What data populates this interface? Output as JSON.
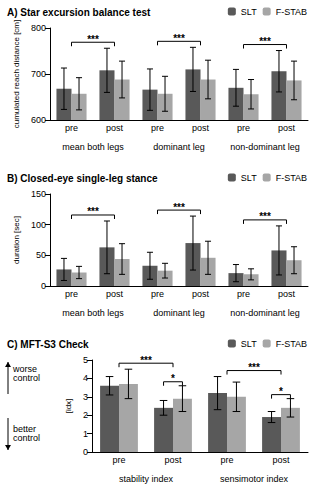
{
  "chart_data": [
    {
      "type": "bar",
      "title": "A) Star excursion balance test",
      "y_label": "cumulated reach distance [cm]",
      "categories": [
        "pre",
        "post",
        "pre",
        "post",
        "pre",
        "post"
      ],
      "groups": [
        "mean both legs",
        "dominant leg",
        "non-dominant leg"
      ],
      "series": [
        {
          "name": "SLT",
          "color": "#595959",
          "values": [
            668,
            708,
            666,
            710,
            670,
            706
          ],
          "errors": [
            45,
            48,
            45,
            48,
            40,
            45
          ]
        },
        {
          "name": "F-STAB",
          "color": "#a6a6a6",
          "values": [
            657,
            688,
            657,
            688,
            656,
            686
          ],
          "errors": [
            35,
            40,
            38,
            42,
            32,
            42
          ]
        }
      ],
      "ylim": [
        600,
        800
      ],
      "yticks": [
        600,
        700,
        800
      ],
      "grid": false,
      "legend": "upper right",
      "significance": [
        {
          "text": "***",
          "categories": [
            0,
            1
          ]
        },
        {
          "text": "***",
          "categories": [
            2,
            3
          ]
        },
        {
          "text": "***",
          "categories": [
            4,
            5
          ]
        }
      ]
    },
    {
      "type": "bar",
      "title": "B) Closed-eye single-leg stance",
      "y_label": "duration [sec]",
      "categories": [
        "pre",
        "post",
        "pre",
        "post",
        "pre",
        "post"
      ],
      "groups": [
        "mean both legs",
        "dominant leg",
        "non-dominant leg"
      ],
      "series": [
        {
          "name": "SLT",
          "color": "#595959",
          "values": [
            27,
            63,
            33,
            70,
            21,
            58
          ],
          "errors": [
            18,
            43,
            22,
            44,
            14,
            40
          ]
        },
        {
          "name": "F-STAB",
          "color": "#a6a6a6",
          "values": [
            22,
            44,
            25,
            46,
            19,
            42
          ],
          "errors": [
            10,
            25,
            12,
            27,
            9,
            22
          ]
        }
      ],
      "ylim": [
        0,
        150
      ],
      "yticks": [
        0,
        50,
        100,
        150
      ],
      "grid": false,
      "legend": "upper right",
      "significance": [
        {
          "text": "***",
          "categories": [
            0,
            1
          ]
        },
        {
          "text": "***",
          "categories": [
            2,
            3
          ]
        },
        {
          "text": "***",
          "categories": [
            4,
            5
          ]
        }
      ]
    },
    {
      "type": "bar",
      "title": "C) MFT-S3 Check",
      "y_label": "[idx]",
      "categories": [
        "pre",
        "post",
        "pre",
        "post"
      ],
      "groups": [
        "stability index",
        "sensimotor index"
      ],
      "series": [
        {
          "name": "SLT",
          "color": "#595959",
          "values": [
            3.6,
            2.4,
            3.2,
            1.9
          ],
          "errors": [
            0.5,
            0.4,
            0.9,
            0.3
          ]
        },
        {
          "name": "F-STAB",
          "color": "#a6a6a6",
          "values": [
            3.7,
            2.9,
            3.0,
            2.4
          ],
          "errors": [
            0.8,
            0.7,
            0.8,
            0.5
          ]
        }
      ],
      "ylim": [
        0,
        5
      ],
      "yticks": [
        0,
        1,
        2,
        3,
        4,
        5
      ],
      "grid": false,
      "legend": "upper right",
      "significance": [
        {
          "text": "***",
          "categories": [
            0,
            1
          ]
        },
        {
          "text": "*",
          "categories": [
            1
          ]
        },
        {
          "text": "***",
          "categories": [
            2,
            3
          ]
        },
        {
          "text": "*",
          "categories": [
            3
          ]
        }
      ],
      "annotations": [
        {
          "text": "worse control",
          "direction": "up"
        },
        {
          "text": "better control",
          "direction": "down"
        }
      ]
    }
  ]
}
